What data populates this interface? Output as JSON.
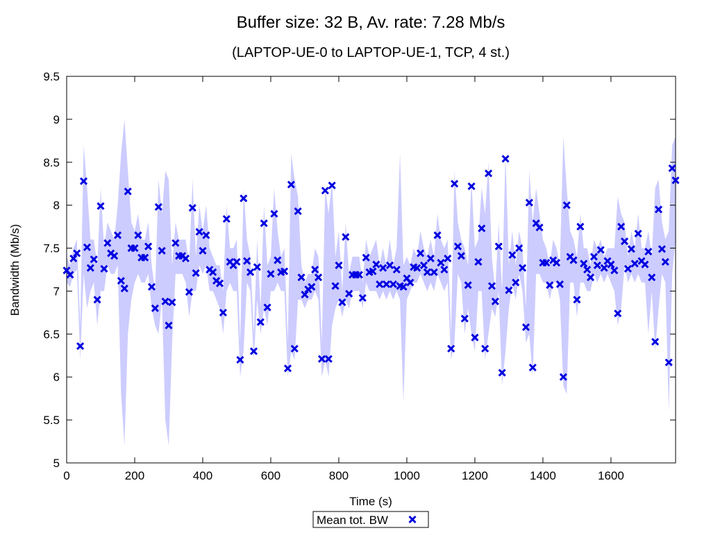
{
  "chart_data": {
    "type": "scatter",
    "title": "Buffer size: 32 B, Av. rate: 7.28 Mb/s",
    "subtitle": "(LAPTOP-UE-0 to LAPTOP-UE-1, TCP, 4 st.)",
    "xlabel": "Time (s)",
    "ylabel": "Bandwidth (Mb/s)",
    "xlim": [
      0,
      1790
    ],
    "ylim": [
      5,
      9.5
    ],
    "xticks": [
      0,
      200,
      400,
      600,
      800,
      1000,
      1200,
      1400,
      1600
    ],
    "yticks": [
      5,
      5.5,
      6,
      6.5,
      7,
      7.5,
      8,
      8.5,
      9,
      9.5
    ],
    "ytick_labels": [
      "5",
      "5.5",
      "6",
      "6.5",
      "7",
      "7.5",
      "8",
      "8.5",
      "9",
      "9.5"
    ],
    "grid": false,
    "legend_position": "bottom-center",
    "series": [
      {
        "name": "Mean tot. BW",
        "marker": "x",
        "color": "#0000e0",
        "x": [
          0,
          10,
          20,
          30,
          40,
          50,
          60,
          70,
          80,
          90,
          100,
          110,
          120,
          130,
          140,
          150,
          160,
          170,
          180,
          190,
          200,
          210,
          220,
          230,
          240,
          250,
          260,
          270,
          280,
          290,
          300,
          310,
          320,
          330,
          340,
          350,
          360,
          370,
          380,
          390,
          400,
          410,
          420,
          430,
          440,
          450,
          460,
          470,
          480,
          490,
          500,
          510,
          520,
          530,
          540,
          550,
          560,
          570,
          580,
          590,
          600,
          610,
          620,
          630,
          640,
          650,
          660,
          670,
          680,
          690,
          700,
          710,
          720,
          730,
          740,
          750,
          760,
          770,
          780,
          790,
          800,
          810,
          820,
          830,
          840,
          850,
          860,
          870,
          880,
          890,
          900,
          910,
          920,
          930,
          940,
          950,
          960,
          970,
          980,
          990,
          1000,
          1010,
          1020,
          1030,
          1040,
          1050,
          1060,
          1070,
          1080,
          1090,
          1100,
          1110,
          1120,
          1130,
          1140,
          1150,
          1160,
          1170,
          1180,
          1190,
          1200,
          1210,
          1220,
          1230,
          1240,
          1250,
          1260,
          1270,
          1280,
          1290,
          1300,
          1310,
          1320,
          1330,
          1340,
          1350,
          1360,
          1370,
          1380,
          1390,
          1400,
          1410,
          1420,
          1430,
          1440,
          1450,
          1460,
          1470,
          1480,
          1490,
          1500,
          1510,
          1520,
          1530,
          1540,
          1550,
          1560,
          1570,
          1580,
          1590,
          1600,
          1610,
          1620,
          1630,
          1640,
          1650,
          1660,
          1670,
          1680,
          1690,
          1700,
          1710,
          1720,
          1730,
          1740,
          1750,
          1760,
          1770,
          1780,
          1790
        ],
        "y": [
          7.24,
          7.19,
          7.38,
          7.44,
          6.36,
          8.28,
          7.51,
          7.27,
          7.37,
          6.9,
          7.99,
          7.26,
          7.56,
          7.44,
          7.41,
          7.65,
          7.12,
          7.03,
          8.16,
          7.5,
          7.5,
          7.65,
          7.39,
          7.39,
          7.52,
          7.05,
          6.8,
          7.98,
          7.47,
          6.88,
          6.6,
          6.87,
          7.56,
          7.41,
          7.41,
          7.38,
          6.99,
          7.97,
          7.21,
          7.69,
          7.47,
          7.65,
          7.25,
          7.22,
          7.12,
          7.09,
          6.75,
          7.84,
          7.34,
          7.3,
          7.34,
          6.2,
          8.08,
          7.35,
          7.22,
          6.3,
          7.28,
          6.64,
          7.79,
          6.81,
          7.2,
          7.9,
          7.36,
          7.22,
          7.23,
          6.1,
          8.24,
          6.33,
          7.93,
          7.16,
          6.96,
          7.02,
          7.05,
          7.25,
          7.16,
          6.21,
          8.17,
          6.21,
          8.23,
          7.06,
          7.3,
          6.87,
          7.63,
          6.97,
          7.19,
          7.19,
          7.19,
          6.92,
          7.39,
          7.22,
          7.23,
          7.31,
          7.08,
          7.27,
          7.08,
          7.3,
          7.08,
          7.25,
          7.06,
          7.05,
          7.15,
          7.1,
          7.28,
          7.27,
          7.44,
          7.3,
          7.22,
          7.38,
          7.22,
          7.65,
          7.33,
          7.25,
          7.38,
          6.33,
          8.25,
          7.52,
          7.41,
          6.68,
          7.07,
          8.22,
          6.46,
          7.34,
          7.73,
          6.33,
          8.37,
          7.06,
          6.88,
          7.52,
          6.05,
          8.54,
          7.01,
          7.42,
          7.1,
          7.5,
          7.27,
          6.58,
          8.03,
          6.11,
          7.79,
          7.74,
          7.33,
          7.33,
          7.07,
          7.36,
          7.33,
          7.08,
          6.0,
          8.0,
          7.4,
          7.36,
          6.9,
          7.75,
          7.32,
          7.25,
          7.16,
          7.4,
          7.3,
          7.48,
          7.27,
          7.35,
          7.31,
          7.24,
          6.74,
          7.75,
          7.58,
          7.26,
          7.49,
          7.32,
          7.67,
          7.35,
          7.31,
          7.46,
          7.16,
          6.41,
          7.95,
          7.49,
          7.34,
          6.17,
          8.43,
          8.29
        ]
      },
      {
        "name": "",
        "role": "min-max band",
        "color": "#ccccff",
        "x": [
          0,
          10,
          20,
          30,
          40,
          50,
          60,
          70,
          80,
          90,
          100,
          110,
          120,
          130,
          140,
          150,
          160,
          170,
          180,
          190,
          200,
          210,
          220,
          230,
          240,
          250,
          260,
          270,
          280,
          290,
          300,
          310,
          320,
          330,
          340,
          350,
          360,
          370,
          380,
          390,
          400,
          410,
          420,
          430,
          440,
          450,
          460,
          470,
          480,
          490,
          500,
          510,
          520,
          530,
          540,
          550,
          560,
          570,
          580,
          590,
          600,
          610,
          620,
          630,
          640,
          650,
          660,
          670,
          680,
          690,
          700,
          710,
          720,
          730,
          740,
          750,
          760,
          770,
          780,
          790,
          800,
          810,
          820,
          830,
          840,
          850,
          860,
          870,
          880,
          890,
          900,
          910,
          920,
          930,
          940,
          950,
          960,
          970,
          980,
          990,
          1000,
          1010,
          1020,
          1030,
          1040,
          1050,
          1060,
          1070,
          1080,
          1090,
          1100,
          1110,
          1120,
          1130,
          1140,
          1150,
          1160,
          1170,
          1180,
          1190,
          1200,
          1210,
          1220,
          1230,
          1240,
          1250,
          1260,
          1270,
          1280,
          1290,
          1300,
          1310,
          1320,
          1330,
          1340,
          1350,
          1360,
          1370,
          1380,
          1390,
          1400,
          1410,
          1420,
          1430,
          1440,
          1450,
          1460,
          1470,
          1480,
          1490,
          1500,
          1510,
          1520,
          1530,
          1540,
          1550,
          1560,
          1570,
          1580,
          1590,
          1600,
          1610,
          1620,
          1630,
          1640,
          1650,
          1660,
          1670,
          1680,
          1690,
          1700,
          1710,
          1720,
          1730,
          1740,
          1750,
          1760,
          1770,
          1780,
          1790
        ],
        "low": [
          7.1,
          7.05,
          7.2,
          7.25,
          6.2,
          7.2,
          6.8,
          7.0,
          7.1,
          6.6,
          7.0,
          7.0,
          7.3,
          7.2,
          7.2,
          7.3,
          5.8,
          5.2,
          6.5,
          6.9,
          7.1,
          7.2,
          7.1,
          7.1,
          7.2,
          6.8,
          6.6,
          6.5,
          6.9,
          5.5,
          5.2,
          6.4,
          7.2,
          7.2,
          7.2,
          7.1,
          6.7,
          7.0,
          7.0,
          7.3,
          7.2,
          7.3,
          7.0,
          7.0,
          6.9,
          6.8,
          6.5,
          7.0,
          7.1,
          7.0,
          7.0,
          6.0,
          6.3,
          7.1,
          7.0,
          6.2,
          6.9,
          6.5,
          6.8,
          6.6,
          7.0,
          7.0,
          7.1,
          7.0,
          7.0,
          6.0,
          6.3,
          6.2,
          6.9,
          6.9,
          6.8,
          6.9,
          6.9,
          7.0,
          6.9,
          6.0,
          6.2,
          6.0,
          6.6,
          6.8,
          6.9,
          6.7,
          6.9,
          6.8,
          7.0,
          7.0,
          7.0,
          6.8,
          7.1,
          7.0,
          7.0,
          7.0,
          6.9,
          7.0,
          6.9,
          7.0,
          6.9,
          7.0,
          6.9,
          5.7,
          6.9,
          7.0,
          7.1,
          7.1,
          7.2,
          7.1,
          7.0,
          7.1,
          7.0,
          7.2,
          7.1,
          7.0,
          7.1,
          6.2,
          6.4,
          7.2,
          7.1,
          6.5,
          6.8,
          6.5,
          6.3,
          7.0,
          7.0,
          6.2,
          6.5,
          6.8,
          6.7,
          7.0,
          5.9,
          6.3,
          6.8,
          7.1,
          6.9,
          7.2,
          7.0,
          6.4,
          6.5,
          6.0,
          7.2,
          7.2,
          7.1,
          7.1,
          6.9,
          7.1,
          7.1,
          6.9,
          5.9,
          5.8,
          7.1,
          7.1,
          6.7,
          7.1,
          7.1,
          7.0,
          7.0,
          7.2,
          7.1,
          7.2,
          7.1,
          7.2,
          7.1,
          7.0,
          6.6,
          6.8,
          7.3,
          7.1,
          7.2,
          7.1,
          7.2,
          7.1,
          7.1,
          6.5,
          7.0,
          6.3,
          6.8,
          7.2,
          7.1,
          5.6,
          7.2,
          7.6
        ],
        "high": [
          7.4,
          7.3,
          7.5,
          7.6,
          6.6,
          8.7,
          8.2,
          7.6,
          7.6,
          7.3,
          8.2,
          7.5,
          7.8,
          7.7,
          7.6,
          8.0,
          8.6,
          9.0,
          8.4,
          7.8,
          7.7,
          7.9,
          7.6,
          7.6,
          7.8,
          7.3,
          7.0,
          8.3,
          7.9,
          8.4,
          8.3,
          7.3,
          7.8,
          7.6,
          7.6,
          7.6,
          7.3,
          8.3,
          7.4,
          8.0,
          7.7,
          8.0,
          7.5,
          7.4,
          7.3,
          7.3,
          7.0,
          8.0,
          7.5,
          7.5,
          7.6,
          6.4,
          8.2,
          7.6,
          7.4,
          6.5,
          7.6,
          6.8,
          8.0,
          7.3,
          7.4,
          8.2,
          7.7,
          7.4,
          7.5,
          6.4,
          8.6,
          8.3,
          8.1,
          7.3,
          7.1,
          7.2,
          7.2,
          7.5,
          7.4,
          6.4,
          8.2,
          7.9,
          8.3,
          7.4,
          7.7,
          7.0,
          7.8,
          7.2,
          7.4,
          7.4,
          7.4,
          7.1,
          7.6,
          7.4,
          7.5,
          7.6,
          7.3,
          7.5,
          7.3,
          7.6,
          7.3,
          7.5,
          8.6,
          7.3,
          7.4,
          7.3,
          7.5,
          7.4,
          7.7,
          7.5,
          7.4,
          7.6,
          7.4,
          7.9,
          7.6,
          7.5,
          7.6,
          6.5,
          8.4,
          7.8,
          7.6,
          7.5,
          7.3,
          8.3,
          7.5,
          7.6,
          8.2,
          7.9,
          8.5,
          7.4,
          7.0,
          7.8,
          7.0,
          8.6,
          7.3,
          7.7,
          7.3,
          7.7,
          7.5,
          6.8,
          8.4,
          7.8,
          8.2,
          7.9,
          7.6,
          7.5,
          7.3,
          7.6,
          7.5,
          7.3,
          8.8,
          8.2,
          7.7,
          7.6,
          7.4,
          7.9,
          7.5,
          7.5,
          7.3,
          7.6,
          7.5,
          7.6,
          7.4,
          7.5,
          7.5,
          7.5,
          8.1,
          7.9,
          7.8,
          7.4,
          7.7,
          7.5,
          7.9,
          7.5,
          7.5,
          7.7,
          7.4,
          8.2,
          8.3,
          7.8,
          7.6,
          7.7,
          8.7,
          8.8
        ]
      }
    ]
  }
}
